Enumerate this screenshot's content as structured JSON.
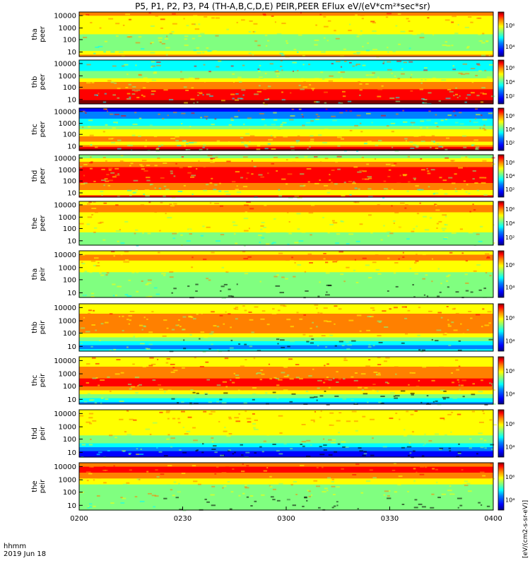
{
  "title": "P5, P1, P2, P3, P4 (TH-A,B,C,D,E) PEIR,PEER EFlux eV/(eV*cm²*sec*sr)",
  "time_axis": {
    "label_line1": "hhmm",
    "label_line2": "2019 Jun 18",
    "ticks": [
      "0200",
      "0230",
      "0300",
      "0330",
      "0400"
    ]
  },
  "colorbar_label": "[eV/(cm2-s-sr-eV)]",
  "colors": {
    "jet": [
      "#000080",
      "#0000ff",
      "#0080ff",
      "#00ffff",
      "#80ff80",
      "#ffff00",
      "#ff8000",
      "#ff0000",
      "#800000"
    ],
    "text": "#000000",
    "background": "#ffffff"
  },
  "chart_data": {
    "type": "heatmap",
    "x_range": [
      "02:00",
      "04:00"
    ],
    "y_scale": "log",
    "panels": [
      {
        "name": "tha peer",
        "label_top": "tha",
        "label_bottom": "peer",
        "yticks": [
          "10",
          "100",
          "1000",
          "10000"
        ],
        "cbar_ticks": [
          "10⁴",
          "10⁶"
        ]
      },
      {
        "name": "thb peer",
        "label_top": "thb",
        "label_bottom": "peer",
        "yticks": [
          "10",
          "100",
          "1000",
          "10000"
        ],
        "cbar_ticks": [
          "10²",
          "10⁴",
          "10⁶"
        ]
      },
      {
        "name": "thc peer",
        "label_top": "thc",
        "label_bottom": "peer",
        "yticks": [
          "10",
          "100",
          "1000",
          "10000"
        ],
        "cbar_ticks": [
          "10²",
          "10⁴",
          "10⁶"
        ]
      },
      {
        "name": "thd peer",
        "label_top": "thd",
        "label_bottom": "peer",
        "yticks": [
          "10",
          "100",
          "1000",
          "10000"
        ],
        "cbar_ticks": [
          "10²",
          "10⁴",
          "10⁶"
        ]
      },
      {
        "name": "the peer",
        "label_top": "the",
        "label_bottom": "peer",
        "yticks": [
          "10",
          "100",
          "1000",
          "10000"
        ],
        "cbar_ticks": [
          "10²",
          "10⁴",
          "10⁶"
        ]
      },
      {
        "name": "tha peir",
        "label_top": "tha",
        "label_bottom": "peir",
        "yticks": [
          "10",
          "100",
          "1000",
          "10000"
        ],
        "cbar_ticks": [
          "10⁴",
          "10⁶"
        ]
      },
      {
        "name": "thb peir",
        "label_top": "thb",
        "label_bottom": "peir",
        "yticks": [
          "10",
          "100",
          "1000",
          "10000"
        ],
        "cbar_ticks": [
          "10⁴",
          "10⁶"
        ]
      },
      {
        "name": "thc peir",
        "label_top": "thc",
        "label_bottom": "peir",
        "yticks": [
          "10",
          "100",
          "1000",
          "10000"
        ],
        "cbar_ticks": [
          "10⁴",
          "10⁶"
        ]
      },
      {
        "name": "thd peir",
        "label_top": "thd",
        "label_bottom": "peir",
        "yticks": [
          "10",
          "100",
          "1000",
          "10000"
        ],
        "cbar_ticks": [
          "10⁴",
          "10⁶"
        ]
      },
      {
        "name": "the peir",
        "label_top": "the",
        "label_bottom": "peir",
        "yticks": [
          "10",
          "100",
          "1000",
          "10000"
        ],
        "cbar_ticks": [
          "10⁴",
          "10⁶"
        ]
      }
    ]
  }
}
